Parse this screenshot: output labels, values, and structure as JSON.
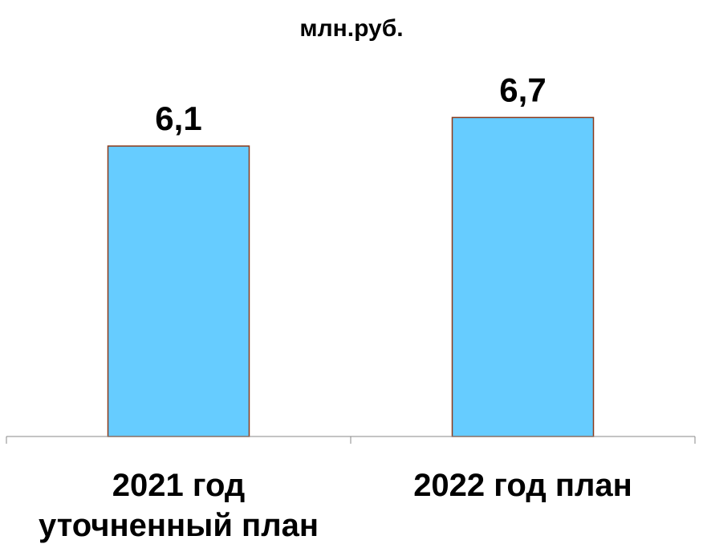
{
  "chart_data": {
    "type": "bar",
    "title": "млн.руб.",
    "categories": [
      [
        "2021 год",
        "уточненный план"
      ],
      [
        "2022 год план"
      ]
    ],
    "values": [
      6.1,
      6.7
    ],
    "value_labels": [
      "6,1",
      "6,7"
    ],
    "xlabel": "",
    "ylabel": "",
    "ylim": [
      0,
      7
    ],
    "grid": false,
    "legend": "none",
    "colors": {
      "bar_fill": "#66ccff",
      "bar_stroke": "#8b3a1a",
      "axis": "#888888"
    }
  }
}
